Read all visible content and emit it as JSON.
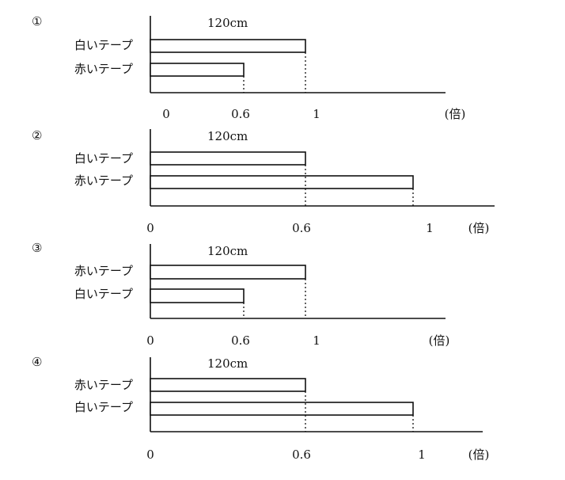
{
  "problems": [
    {
      "number": "①",
      "amount": "120cm",
      "tapes": [
        "白いテープ",
        "赤いテープ"
      ],
      "ticks": [
        0,
        0.6,
        1
      ],
      "unit": "(倍)"
    },
    {
      "number": "②",
      "amount": "120cm",
      "tapes": [
        "白いテープ",
        "赤いテープ"
      ],
      "ticks": [
        0,
        0.6,
        1
      ],
      "unit": "(倍)"
    },
    {
      "number": "③",
      "amount": "120cm",
      "tapes": [
        "赤いテープ",
        "白いテープ"
      ],
      "ticks": [
        0,
        0.6,
        1
      ],
      "unit": "(倍)"
    },
    {
      "number": "④",
      "amount": "120cm",
      "tapes": [
        "赤いテープ",
        "白いテープ"
      ],
      "ticks": [
        0,
        0.6,
        1
      ],
      "unit": "(倍)"
    }
  ]
}
